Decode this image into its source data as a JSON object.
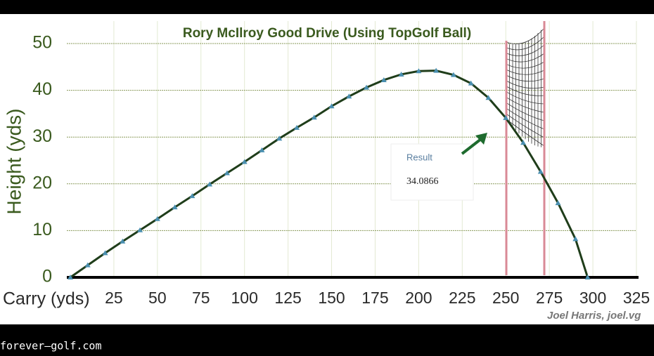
{
  "chart_data": {
    "type": "line",
    "title": "Rory McIlroy Good Drive (Using TopGolf Ball)",
    "xlabel": "Carry (yds)",
    "ylabel": "Height (yds)",
    "x": [
      0,
      10,
      20,
      30,
      40,
      50,
      60,
      70,
      80,
      90,
      100,
      110,
      120,
      130,
      140,
      150,
      160,
      170,
      180,
      190,
      200,
      210,
      220,
      230,
      240,
      250,
      260,
      270,
      280,
      290,
      297
    ],
    "series": [
      {
        "color": "#1f3d1a",
        "marker_color": "#4a8fb0",
        "values": [
          0,
          2.6,
          5.2,
          7.7,
          10.1,
          12.5,
          15.0,
          17.4,
          19.9,
          22.3,
          24.7,
          27.2,
          29.7,
          32.0,
          34.2,
          36.6,
          38.7,
          40.6,
          42.2,
          43.4,
          44.1,
          44.2,
          43.3,
          41.5,
          38.4,
          34.1,
          28.8,
          22.6,
          15.9,
          8.2,
          0
        ]
      }
    ],
    "xlim": [
      0,
      325
    ],
    "ylim": [
      0,
      50
    ],
    "xticks": [
      25,
      50,
      75,
      100,
      125,
      150,
      175,
      200,
      225,
      250,
      275,
      300,
      325
    ],
    "yticks": [
      0,
      10,
      20,
      30,
      40,
      50
    ],
    "grid": true,
    "result_label": "Result",
    "result_value": 34.0866,
    "credit": "Joel Harris, joel.vg",
    "source": "forever–golf.com"
  }
}
